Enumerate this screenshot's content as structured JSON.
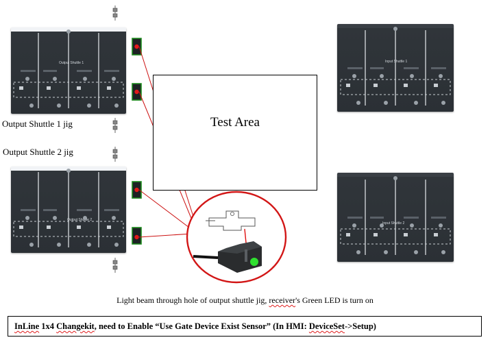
{
  "test_area": {
    "label": "Test Area"
  },
  "jigs": {
    "output_1": {
      "title": "Output Shuttle 1"
    },
    "output_2": {
      "title": "Output Shuttle 2"
    },
    "input_1": {
      "title": "Input Shuttle 1"
    },
    "input_2": {
      "title": "Input Shuttle 2"
    }
  },
  "labels": {
    "output_1_jig": "Output Shuttle 1 jig",
    "output_2_jig": "Output Shuttle 2 jig"
  },
  "caption": {
    "before": "Light beam through hole of output shuttle jig, ",
    "word": "receiver",
    "after": "'s Green LED is turn on"
  },
  "note": {
    "w1": "InLine",
    "t1": " 1x4 ",
    "w2": "Changekit",
    "t2": ", need to Enable “Use Gate Device Exist Sensor” (In HMI: ",
    "w3": "DeviceSet",
    "t3": "->Setup)"
  },
  "colors": {
    "beam_line": "#cc1111",
    "sensor_frame": "#1d8a1d",
    "emitter": "#e21a1a",
    "receiver_led": "#2fe02f",
    "jig_body": "#2e3338"
  }
}
